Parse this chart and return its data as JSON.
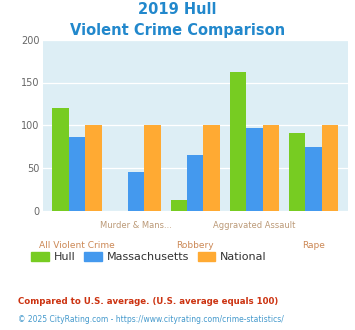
{
  "title_line1": "2019 Hull",
  "title_line2": "Violent Crime Comparison",
  "cat_line1": [
    "",
    "Murder & Mans...",
    "",
    "Aggravated Assault",
    ""
  ],
  "cat_line2": [
    "All Violent Crime",
    "",
    "Robbery",
    "",
    "Rape"
  ],
  "hull": [
    120,
    0,
    13,
    162,
    91
  ],
  "massachusetts": [
    86,
    46,
    65,
    97,
    75
  ],
  "national": [
    100,
    100,
    100,
    100,
    100
  ],
  "hull_color": "#77cc22",
  "mass_color": "#4499ee",
  "national_color": "#ffaa33",
  "bg_color": "#ddeef5",
  "title_color": "#2288cc",
  "xlabel_upper_color": "#bb9977",
  "xlabel_lower_color": "#cc8855",
  "legend_labels": [
    "Hull",
    "Massachusetts",
    "National"
  ],
  "footer1": "Compared to U.S. average. (U.S. average equals 100)",
  "footer2": "© 2025 CityRating.com - https://www.cityrating.com/crime-statistics/",
  "footer1_color": "#cc3311",
  "footer2_color": "#4499cc",
  "ylim": [
    0,
    200
  ],
  "yticks": [
    0,
    50,
    100,
    150,
    200
  ]
}
